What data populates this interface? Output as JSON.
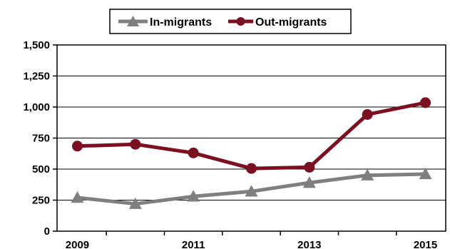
{
  "chart_data": {
    "type": "line",
    "title": "",
    "xlabel": "",
    "ylabel": "",
    "x": [
      2009,
      2010,
      2011,
      2012,
      2013,
      2014,
      2015
    ],
    "x_tick_labels": [
      "2009",
      "2011",
      "2013",
      "2015"
    ],
    "x_tick_values": [
      2009,
      2011,
      2013,
      2015
    ],
    "y_tick_labels": [
      "0",
      "250",
      "500",
      "750",
      "1,000",
      "1,250",
      "1,500"
    ],
    "y_tick_values": [
      0,
      250,
      500,
      750,
      1000,
      1250,
      1500
    ],
    "ylim": [
      0,
      1500
    ],
    "grid": "horizontal",
    "legend_position": "top-center",
    "series": [
      {
        "name": "In-migrants",
        "marker": "triangle",
        "color": "#7f7f7f",
        "values": [
          270,
          220,
          280,
          320,
          390,
          450,
          460
        ]
      },
      {
        "name": "Out-migrants",
        "marker": "circle",
        "color": "#7b1020",
        "values": [
          685,
          700,
          630,
          505,
          515,
          940,
          1035
        ]
      }
    ]
  }
}
